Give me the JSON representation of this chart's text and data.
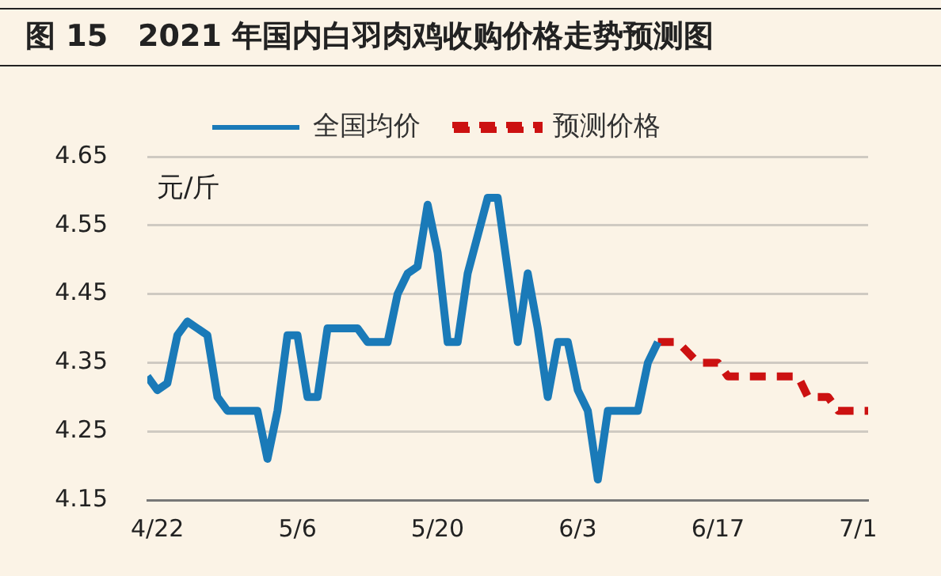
{
  "chart_data": {
    "type": "line",
    "title": "图 15　2021 年国内白羽肉鸡收购价格走势预测图",
    "ylabel": "元/斤",
    "series": [
      {
        "name": "全国均价",
        "color": "#1a7ab8",
        "line_style": "solid",
        "x": [
          "2021-04-21",
          "2021-04-22",
          "2021-04-23",
          "2021-04-24",
          "2021-04-25",
          "2021-04-26",
          "2021-04-27",
          "2021-04-28",
          "2021-04-29",
          "2021-05-02",
          "2021-05-03",
          "2021-05-04",
          "2021-05-05",
          "2021-05-06",
          "2021-05-07",
          "2021-05-08",
          "2021-05-09",
          "2021-05-12",
          "2021-05-13",
          "2021-05-15",
          "2021-05-16",
          "2021-05-17",
          "2021-05-18",
          "2021-05-19",
          "2021-05-20",
          "2021-05-21",
          "2021-05-22",
          "2021-05-23",
          "2021-05-25",
          "2021-05-26",
          "2021-05-28",
          "2021-05-29",
          "2021-05-30",
          "2021-05-31",
          "2021-06-01",
          "2021-06-02",
          "2021-06-03",
          "2021-06-04",
          "2021-06-05",
          "2021-06-06",
          "2021-06-09",
          "2021-06-10",
          "2021-06-11"
        ],
        "values": [
          4.33,
          4.31,
          4.32,
          4.39,
          4.41,
          4.4,
          4.39,
          4.3,
          4.28,
          4.28,
          4.21,
          4.28,
          4.39,
          4.39,
          4.3,
          4.3,
          4.4,
          4.4,
          4.38,
          4.38,
          4.45,
          4.48,
          4.49,
          4.58,
          4.51,
          4.38,
          4.38,
          4.48,
          4.59,
          4.59,
          4.38,
          4.48,
          4.4,
          4.3,
          4.38,
          4.38,
          4.31,
          4.28,
          4.18,
          4.28,
          4.28,
          4.35,
          4.38
        ]
      },
      {
        "name": "预测价格",
        "color": "#cc1111",
        "line_style": "dashed",
        "x": [
          "2021-06-11",
          "2021-06-13",
          "2021-06-15",
          "2021-06-17",
          "2021-06-18",
          "2021-06-25",
          "2021-06-26",
          "2021-06-28",
          "2021-06-29",
          "2021-07-02"
        ],
        "values": [
          4.38,
          4.38,
          4.35,
          4.35,
          4.33,
          4.33,
          4.3,
          4.3,
          4.28,
          4.28
        ]
      }
    ],
    "xlim": [
      "2021-04-21",
      "2021-07-02"
    ],
    "xticks": [
      {
        "value": "2021-04-22",
        "label": "4/22"
      },
      {
        "value": "2021-05-06",
        "label": "5/6"
      },
      {
        "value": "2021-05-20",
        "label": "5/20"
      },
      {
        "value": "2021-06-03",
        "label": "6/3"
      },
      {
        "value": "2021-06-17",
        "label": "6/17"
      },
      {
        "value": "2021-07-01",
        "label": "7/1"
      }
    ],
    "ylim": [
      4.15,
      4.65
    ],
    "yticks": [
      4.15,
      4.25,
      4.35,
      4.45,
      4.55,
      4.65
    ],
    "grid": "y",
    "legend": "top",
    "marker": "none"
  }
}
